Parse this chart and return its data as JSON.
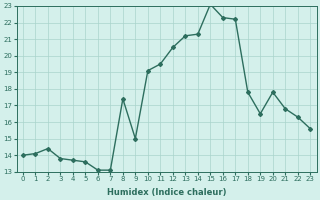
{
  "x": [
    0,
    1,
    2,
    3,
    4,
    5,
    6,
    7,
    8,
    9,
    10,
    11,
    12,
    13,
    14,
    15,
    16,
    17,
    18,
    19,
    20,
    21,
    22,
    23
  ],
  "y": [
    14.0,
    14.1,
    14.4,
    13.8,
    13.7,
    13.6,
    13.1,
    13.1,
    17.4,
    15.0,
    19.1,
    19.5,
    20.5,
    21.2,
    21.3,
    23.1,
    22.3,
    22.2,
    17.8,
    16.5,
    17.8,
    16.8,
    16.3,
    15.6
  ],
  "xlabel": "Humidex (Indice chaleur)",
  "xlim": [
    -0.5,
    23.5
  ],
  "ylim": [
    13,
    23
  ],
  "yticks": [
    13,
    14,
    15,
    16,
    17,
    18,
    19,
    20,
    21,
    22,
    23
  ],
  "xticks": [
    0,
    1,
    2,
    3,
    4,
    5,
    6,
    7,
    8,
    9,
    10,
    11,
    12,
    13,
    14,
    15,
    16,
    17,
    18,
    19,
    20,
    21,
    22,
    23
  ],
  "xtick_labels": [
    "0",
    "1",
    "2",
    "3",
    "4",
    "5",
    "6",
    "7",
    "8",
    "9",
    "10",
    "11",
    "12",
    "13",
    "14",
    "15",
    "16",
    "17",
    "18",
    "19",
    "20",
    "21",
    "22",
    "23"
  ],
  "ytick_labels": [
    "13",
    "14",
    "15",
    "16",
    "17",
    "18",
    "19",
    "20",
    "21",
    "22",
    "23"
  ],
  "line_color": "#2d6e5e",
  "marker": "D",
  "marker_size": 2.0,
  "bg_color": "#d4f0eb",
  "grid_color": "#aad4cc",
  "tick_color": "#2d6e5e",
  "label_color": "#2d6e5e",
  "line_width": 1.0
}
